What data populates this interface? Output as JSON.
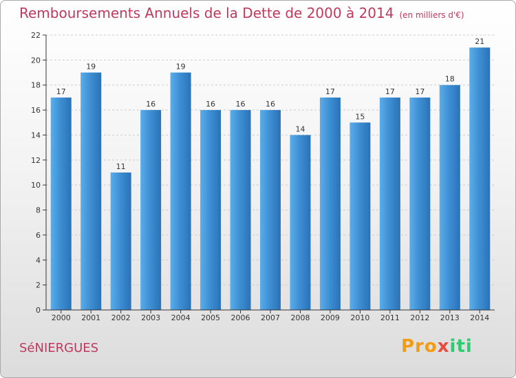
{
  "title": "Remboursements Annuels de la Dette de 2000 à 2014",
  "unit": "(en milliers d'€)",
  "city": "SéNIERGUES",
  "logo": {
    "p1": "Pro",
    "p2": "x",
    "p3": "iti"
  },
  "colors": {
    "bar": "#3f8fd4",
    "bar_light": "#5aaeea",
    "bar_dark": "#2a72b8",
    "title": "#c0395d",
    "axis": "#333333",
    "grid": "#cccccc"
  },
  "chart_data": {
    "type": "bar",
    "title": "Remboursements Annuels de la Dette de 2000 à 2014",
    "xlabel": "",
    "ylabel": "",
    "categories": [
      "2000",
      "2001",
      "2002",
      "2003",
      "2004",
      "2005",
      "2006",
      "2007",
      "2008",
      "2009",
      "2010",
      "2011",
      "2012",
      "2013",
      "2014"
    ],
    "values": [
      17,
      19,
      11,
      16,
      19,
      16,
      16,
      16,
      14,
      17,
      15,
      17,
      17,
      18,
      21
    ],
    "ylim": [
      0,
      22
    ],
    "yticks": [
      0,
      2,
      4,
      6,
      8,
      10,
      12,
      14,
      16,
      18,
      20,
      22
    ],
    "grid": true,
    "legend": "none"
  }
}
